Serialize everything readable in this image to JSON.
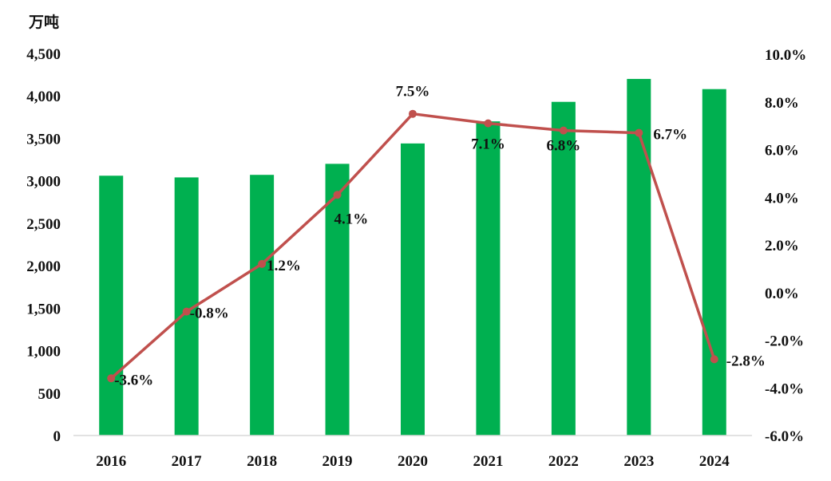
{
  "chart_data": {
    "type": "bar",
    "unit_label": "万吨",
    "categories": [
      "2016",
      "2017",
      "2018",
      "2019",
      "2020",
      "2021",
      "2022",
      "2023",
      "2024"
    ],
    "series": [
      {
        "type": "bar",
        "axis": "left",
        "color": "#00B050",
        "values": [
          3060,
          3040,
          3070,
          3200,
          3440,
          3700,
          3930,
          4200,
          4080
        ]
      },
      {
        "type": "line",
        "axis": "right",
        "color": "#C0504D",
        "values": [
          -3.6,
          -0.8,
          1.2,
          4.1,
          7.5,
          7.1,
          6.8,
          6.7,
          -2.8
        ],
        "labels": [
          "-3.6%",
          "-0.8%",
          "1.2%",
          "4.1%",
          "7.5%",
          "7.1%",
          "6.8%",
          "6.7%",
          "-2.8%"
        ]
      }
    ],
    "y_left": {
      "min": 0,
      "max": 4500,
      "ticks": [
        0,
        500,
        1000,
        1500,
        2000,
        2500,
        3000,
        3500,
        4000,
        4500
      ],
      "tick_labels": [
        "0",
        "500",
        "1,000",
        "1,500",
        "2,000",
        "2,500",
        "3,000",
        "3,500",
        "4,000",
        "4,500"
      ]
    },
    "y_right": {
      "min": -6.0,
      "max": 10.0,
      "ticks": [
        -6,
        -4,
        -2,
        0,
        2,
        4,
        6,
        8,
        10
      ],
      "tick_labels": [
        "-6.0%",
        "-4.0%",
        "-2.0%",
        "0.0%",
        "2.0%",
        "4.0%",
        "6.0%",
        "8.0%",
        "10.0%"
      ]
    },
    "grid": false,
    "legend": "none"
  }
}
